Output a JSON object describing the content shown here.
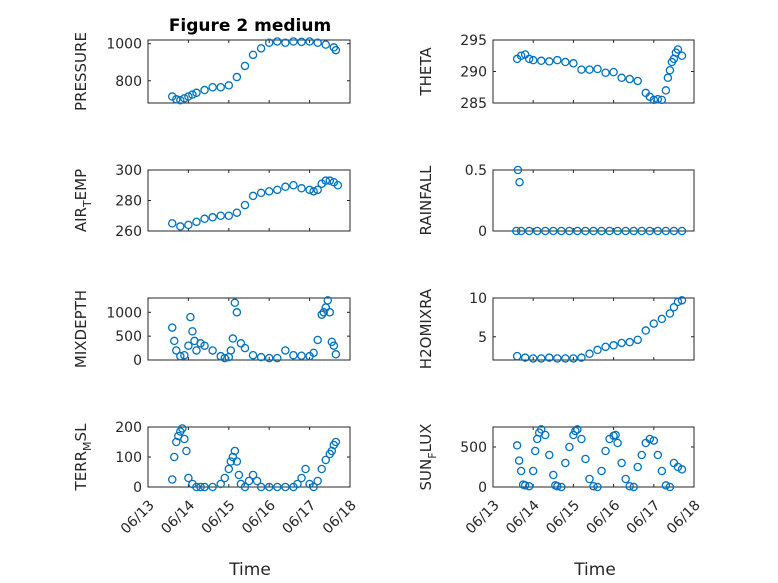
{
  "figure": {
    "title": "Figure 2 medium",
    "xlabel": "Time",
    "marker_color": "#0072BD",
    "axes_color": "#262626",
    "grid": "on, major and minor"
  },
  "chart_data": [
    {
      "type": "scatter",
      "ylabel": "PRESSURE",
      "xlim": [
        "06/13",
        "06/18"
      ],
      "ylim": [
        680,
        1020
      ],
      "yticks": [
        800,
        1000
      ],
      "x": [
        13.6,
        13.7,
        13.8,
        13.9,
        14.0,
        14.1,
        14.2,
        14.4,
        14.6,
        14.8,
        15.0,
        15.2,
        15.4,
        15.6,
        15.8,
        16.0,
        16.2,
        16.4,
        16.6,
        16.8,
        17.0,
        17.2,
        17.4,
        17.6,
        17.65
      ],
      "y": [
        715,
        700,
        695,
        705,
        715,
        725,
        735,
        750,
        765,
        765,
        775,
        820,
        880,
        940,
        975,
        1005,
        1012,
        1005,
        1012,
        1010,
        1012,
        1005,
        995,
        980,
        965
      ]
    },
    {
      "type": "scatter",
      "ylabel": "THETA",
      "xlim": [
        "06/13",
        "06/18"
      ],
      "ylim": [
        285,
        295
      ],
      "yticks": [
        285,
        290,
        295
      ],
      "x": [
        13.6,
        13.7,
        13.8,
        13.9,
        14.0,
        14.2,
        14.4,
        14.6,
        14.8,
        15.0,
        15.2,
        15.4,
        15.6,
        15.8,
        16.0,
        16.2,
        16.4,
        16.6,
        16.8,
        16.9,
        17.0,
        17.1,
        17.2,
        17.3,
        17.35,
        17.4,
        17.45,
        17.5,
        17.55,
        17.6,
        17.7
      ],
      "y": [
        292,
        292.5,
        292.7,
        292,
        291.8,
        291.7,
        291.6,
        291.8,
        291.5,
        291.3,
        290.3,
        290.3,
        290.4,
        289.8,
        289.9,
        289.0,
        288.8,
        288.5,
        286.6,
        286.0,
        285.5,
        285.6,
        285.5,
        287.0,
        289.0,
        290.2,
        291.5,
        292.0,
        293.0,
        293.5,
        292.5
      ]
    },
    {
      "type": "scatter",
      "ylabel": "AIR_TEMP",
      "xlim": [
        "06/13",
        "06/18"
      ],
      "ylim": [
        260,
        300
      ],
      "yticks": [
        260,
        280,
        300
      ],
      "x": [
        13.6,
        13.8,
        14.0,
        14.2,
        14.4,
        14.6,
        14.8,
        15.0,
        15.2,
        15.4,
        15.6,
        15.8,
        16.0,
        16.2,
        16.4,
        16.6,
        16.8,
        17.0,
        17.1,
        17.2,
        17.3,
        17.4,
        17.5,
        17.6,
        17.7
      ],
      "y": [
        265,
        263,
        264,
        266,
        268,
        269,
        270,
        270,
        272,
        277,
        283,
        285,
        286,
        287,
        289,
        290,
        288,
        287,
        286,
        287,
        291,
        293,
        293,
        292,
        290
      ]
    },
    {
      "type": "scatter",
      "ylabel": "RAINFALL",
      "xlim": [
        "06/13",
        "06/18"
      ],
      "ylim": [
        0,
        0.5
      ],
      "yticks": [
        0,
        0.5
      ],
      "x": [
        13.58,
        13.62,
        13.66,
        13.7,
        13.9,
        14.1,
        14.3,
        14.5,
        14.7,
        14.9,
        15.1,
        15.3,
        15.5,
        15.7,
        15.9,
        16.1,
        16.3,
        16.5,
        16.7,
        16.9,
        17.1,
        17.3,
        17.5,
        17.7
      ],
      "y": [
        0,
        0.5,
        0.4,
        0,
        0,
        0,
        0,
        0,
        0,
        0,
        0,
        0,
        0,
        0,
        0,
        0,
        0,
        0,
        0,
        0,
        0,
        0,
        0,
        0
      ]
    },
    {
      "type": "scatter",
      "ylabel": "MIXDEPTH",
      "xlim": [
        "06/13",
        "06/18"
      ],
      "ylim": [
        0,
        1300
      ],
      "yticks": [
        0,
        500,
        1000
      ],
      "x": [
        13.6,
        13.65,
        13.7,
        13.8,
        13.9,
        14.0,
        14.05,
        14.1,
        14.15,
        14.2,
        14.3,
        14.4,
        14.6,
        14.8,
        14.9,
        15.0,
        15.05,
        15.1,
        15.15,
        15.2,
        15.3,
        15.4,
        15.6,
        15.8,
        16.0,
        16.2,
        16.4,
        16.6,
        16.8,
        17.0,
        17.1,
        17.2,
        17.3,
        17.35,
        17.4,
        17.45,
        17.5,
        17.55,
        17.6,
        17.65
      ],
      "y": [
        680,
        400,
        200,
        80,
        100,
        300,
        900,
        600,
        400,
        200,
        350,
        300,
        200,
        80,
        40,
        60,
        200,
        450,
        1200,
        1000,
        350,
        250,
        100,
        60,
        40,
        40,
        200,
        100,
        90,
        80,
        150,
        420,
        950,
        1000,
        1100,
        1250,
        1000,
        380,
        300,
        120
      ]
    },
    {
      "type": "scatter",
      "ylabel": "H2OMIXRA",
      "xlim": [
        "06/13",
        "06/18"
      ],
      "ylim": [
        2,
        10
      ],
      "yticks": [
        5,
        10
      ],
      "x": [
        13.6,
        13.8,
        14.0,
        14.2,
        14.4,
        14.6,
        14.8,
        15.0,
        15.2,
        15.4,
        15.6,
        15.8,
        16.0,
        16.2,
        16.4,
        16.6,
        16.8,
        17.0,
        17.2,
        17.4,
        17.5,
        17.6,
        17.7
      ],
      "y": [
        2.5,
        2.3,
        2.2,
        2.2,
        2.3,
        2.2,
        2.2,
        2.2,
        2.3,
        2.8,
        3.3,
        3.7,
        3.9,
        4.2,
        4.3,
        4.6,
        5.8,
        6.7,
        7.3,
        8.0,
        8.8,
        9.5,
        9.7
      ]
    },
    {
      "type": "scatter",
      "ylabel": "TERR_MSL",
      "xlim": [
        "06/13",
        "06/18"
      ],
      "ylim": [
        0,
        200
      ],
      "yticks": [
        0,
        100,
        200
      ],
      "x": [
        13.6,
        13.65,
        13.7,
        13.75,
        13.8,
        13.85,
        13.9,
        13.95,
        14.0,
        14.1,
        14.2,
        14.3,
        14.4,
        14.6,
        14.8,
        14.9,
        15.0,
        15.05,
        15.1,
        15.15,
        15.2,
        15.25,
        15.3,
        15.4,
        15.5,
        15.6,
        15.7,
        15.8,
        16.0,
        16.2,
        16.4,
        16.6,
        16.7,
        16.8,
        16.9,
        17.0,
        17.1,
        17.2,
        17.3,
        17.4,
        17.5,
        17.55,
        17.6,
        17.65
      ],
      "y": [
        25,
        100,
        150,
        170,
        185,
        195,
        160,
        120,
        30,
        10,
        0,
        0,
        0,
        0,
        10,
        30,
        60,
        85,
        100,
        120,
        85,
        40,
        10,
        0,
        20,
        40,
        20,
        0,
        0,
        0,
        0,
        0,
        10,
        30,
        60,
        10,
        0,
        20,
        60,
        90,
        110,
        120,
        140,
        150
      ]
    },
    {
      "type": "scatter",
      "ylabel": "SUN_FLUX",
      "xlim": [
        "06/13",
        "06/18"
      ],
      "ylim": [
        0,
        750
      ],
      "yticks": [
        0,
        500
      ],
      "x": [
        13.6,
        13.65,
        13.7,
        13.75,
        13.8,
        13.9,
        14.0,
        14.05,
        14.1,
        14.15,
        14.2,
        14.3,
        14.4,
        14.5,
        14.55,
        14.6,
        14.7,
        14.8,
        14.9,
        15.0,
        15.05,
        15.1,
        15.2,
        15.3,
        15.4,
        15.5,
        15.6,
        15.7,
        15.8,
        15.9,
        16.0,
        16.05,
        16.1,
        16.2,
        16.3,
        16.4,
        16.5,
        16.6,
        16.7,
        16.8,
        16.9,
        17.0,
        17.1,
        17.2,
        17.3,
        17.4,
        17.5,
        17.6,
        17.7
      ],
      "y": [
        520,
        330,
        200,
        30,
        20,
        10,
        200,
        450,
        600,
        680,
        720,
        650,
        400,
        150,
        20,
        10,
        0,
        300,
        500,
        650,
        700,
        720,
        600,
        350,
        100,
        10,
        0,
        200,
        450,
        600,
        640,
        650,
        550,
        300,
        100,
        10,
        0,
        250,
        400,
        550,
        600,
        580,
        400,
        200,
        20,
        0,
        300,
        250,
        220
      ]
    }
  ]
}
